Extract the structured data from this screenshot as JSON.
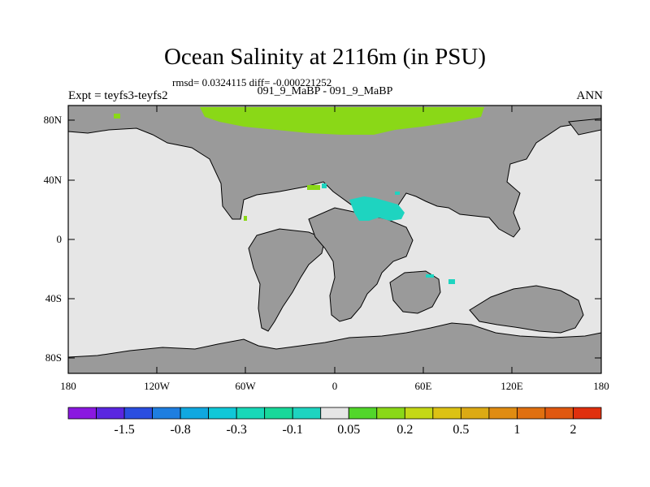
{
  "map": {
    "title": "Ocean Salinity at 2116m (in PSU)",
    "stats": "rmsd= 0.0324115  diff= -0.000221252",
    "expt_label": "Expt = teyfs3-teyfs2",
    "case_label": "091_9_MaBP - 091_9_MaBP",
    "season": "ANN",
    "lat_ticks": [
      "80N",
      "40N",
      "0",
      "40S",
      "80S"
    ],
    "lon_ticks": [
      "180",
      "120W",
      "60W",
      "0",
      "60E",
      "120E",
      "180"
    ]
  },
  "colorbar": {
    "labels": [
      "-1.5",
      "-0.8",
      "-0.3",
      "-0.1",
      "0.05",
      "0.2",
      "0.5",
      "1",
      "2"
    ],
    "colors": [
      "#8a18e0",
      "#5a26e0",
      "#2a4ee0",
      "#1e7ee0",
      "#10a8e0",
      "#10c8d8",
      "#18d8b8",
      "#18d89a",
      "#1ed4c0",
      "#e6e6e6",
      "#52d62a",
      "#8ad817",
      "#c4d816",
      "#dcc214",
      "#dcaa14",
      "#e08c12",
      "#e07010",
      "#e05810",
      "#e0300e"
    ]
  },
  "colors": {
    "land": "#9a9a9a",
    "ocean": "#e6e6e6",
    "positive_anomaly": "#8ad817",
    "negative_anomaly": "#1ed4c0"
  }
}
